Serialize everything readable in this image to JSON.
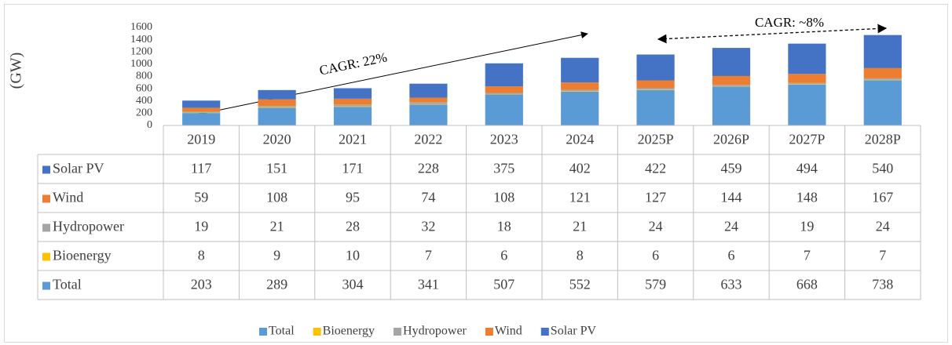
{
  "chart_data": {
    "type": "bar",
    "stacked": true,
    "ylabel": "(GW)",
    "categories": [
      "2019",
      "2020",
      "2021",
      "2022",
      "2023",
      "2024",
      "2025P",
      "2026P",
      "2027P",
      "2028P"
    ],
    "series": [
      {
        "name": "Total",
        "color": "#5b9bd5",
        "values": [
          203,
          289,
          304,
          341,
          507,
          552,
          579,
          633,
          668,
          738
        ]
      },
      {
        "name": "Bioenergy",
        "color": "#ffc000",
        "values": [
          8,
          9,
          10,
          7,
          6,
          8,
          6,
          6,
          7,
          7
        ]
      },
      {
        "name": "Hydropower",
        "color": "#a5a5a5",
        "values": [
          19,
          21,
          28,
          32,
          18,
          21,
          24,
          24,
          19,
          24
        ]
      },
      {
        "name": "Wind",
        "color": "#ed7d31",
        "values": [
          59,
          108,
          95,
          74,
          108,
          121,
          127,
          144,
          148,
          167
        ]
      },
      {
        "name": "Solar PV",
        "color": "#4472c4",
        "values": [
          117,
          151,
          171,
          228,
          375,
          402,
          422,
          459,
          494,
          540
        ]
      }
    ],
    "ylim": [
      0,
      1600
    ],
    "yticks": [
      0,
      200,
      400,
      600,
      800,
      1000,
      1200,
      1400,
      1600
    ],
    "annotations": [
      "CAGR: 22%",
      "CAGR: ~8%"
    ]
  }
}
